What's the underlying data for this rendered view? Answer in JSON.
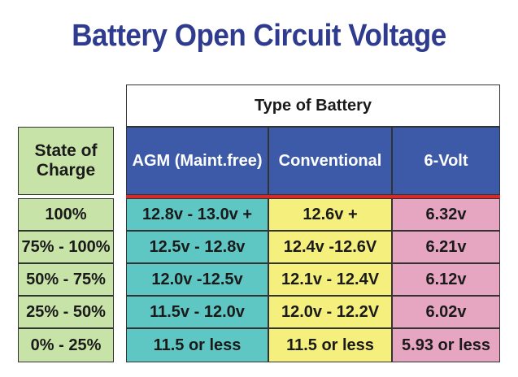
{
  "chart_data": {
    "type": "table",
    "title": "Battery Open Circuit Voltage",
    "group_header": "Type of Battery",
    "row_header": "State of\nCharge",
    "columns": [
      "AGM (Maint.free)",
      "Conventional",
      "6-Volt"
    ],
    "rows": [
      {
        "state": "100%",
        "values": [
          "12.8v - 13.0v +",
          "12.6v +",
          "6.32v"
        ]
      },
      {
        "state": "75% - 100%",
        "values": [
          "12.5v - 12.8v",
          "12.4v -12.6V",
          "6.21v"
        ]
      },
      {
        "state": "50% - 75%",
        "values": [
          "12.0v -12.5v",
          "12.1v - 12.4V",
          "6.12v"
        ]
      },
      {
        "state": "25% - 50%",
        "values": [
          "11.5v - 12.0v",
          "12.0v - 12.2V",
          "6.02v"
        ]
      },
      {
        "state": "0% - 25%",
        "values": [
          "11.5 or less",
          "11.5 or less",
          "5.93 or less"
        ]
      }
    ]
  },
  "colors": {
    "title": "#2e3b8e",
    "state_bg": "#c8e3a8",
    "header_bg": "#3d5aa8",
    "agm_bg": "#5fc7c3",
    "conventional_bg": "#f5ef7e",
    "six_volt_bg": "#e6a6c2",
    "divider": "#d62a2a"
  }
}
